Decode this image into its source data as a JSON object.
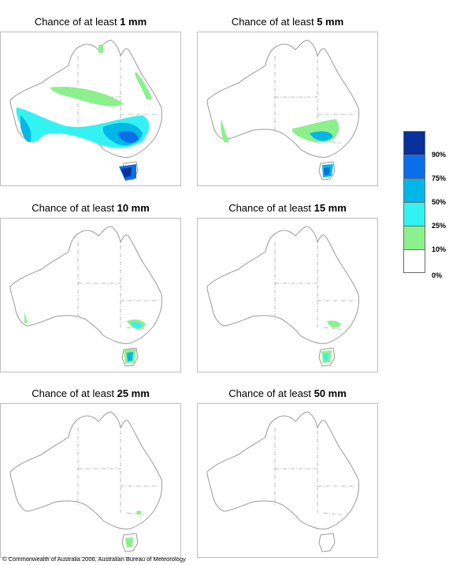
{
  "panels": [
    {
      "title_prefix": "Chance of at least ",
      "title_value": "1 mm"
    },
    {
      "title_prefix": "Chance of at least ",
      "title_value": "5 mm"
    },
    {
      "title_prefix": "Chance of at least ",
      "title_value": "10 mm"
    },
    {
      "title_prefix": "Chance of at least ",
      "title_value": "15 mm"
    },
    {
      "title_prefix": "Chance of at least ",
      "title_value": "25 mm"
    },
    {
      "title_prefix": "Chance of at least ",
      "title_value": "50 mm"
    }
  ],
  "legend": {
    "labels": [
      "90%",
      "75%",
      "50%",
      "25%",
      "10%",
      "0%"
    ],
    "colors": [
      "#06309a",
      "#0a6ee8",
      "#00b7e8",
      "#33f2f2",
      "#8cf08c",
      "#ffffff"
    ]
  },
  "copyright": "© Commonwealth of Australia 2006, Australian Bureau of Meteorology"
}
